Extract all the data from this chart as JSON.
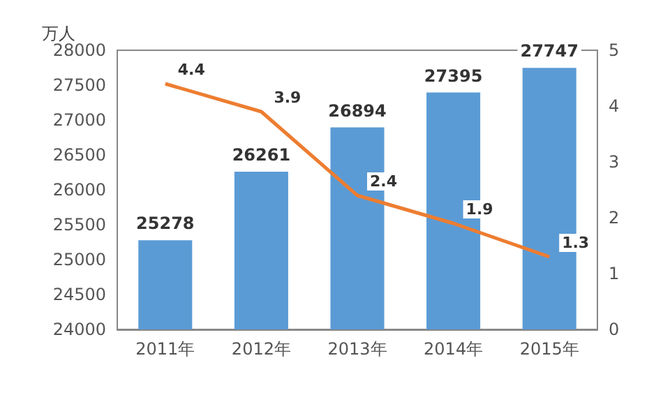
{
  "chart_data": {
    "type": "bar",
    "ylabel": "万人",
    "categories": [
      "2011年",
      "2012年",
      "2013年",
      "2014年",
      "2015年"
    ],
    "series": [
      {
        "color": "#5b9bd5",
        "values": [
          25278,
          26261,
          26894,
          27395,
          27747
        ]
      },
      {
        "type": "line",
        "axis": "y2",
        "color": "#ed7d31",
        "values": [
          4.4,
          3.9,
          2.4,
          1.9,
          1.3
        ]
      }
    ],
    "ylim": [
      24000,
      28000
    ],
    "yticks": [
      24000,
      24500,
      25000,
      25500,
      26000,
      26500,
      27000,
      27500,
      28000
    ],
    "y2lim": [
      0,
      5
    ],
    "y2ticks": [
      0,
      1,
      2,
      3,
      4,
      5
    ],
    "data_labels": true,
    "grid": false,
    "marker": "none",
    "line_style": "solid"
  }
}
